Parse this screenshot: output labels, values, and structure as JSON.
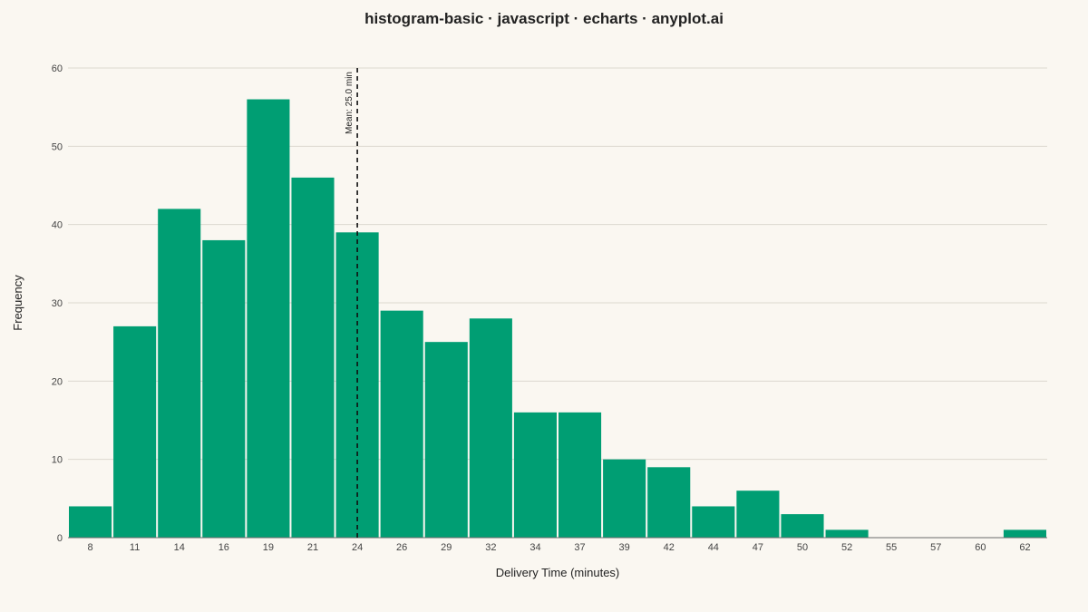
{
  "chart_data": {
    "type": "bar",
    "title": "histogram-basic · javascript · echarts · anyplot.ai",
    "xlabel": "Delivery Time (minutes)",
    "ylabel": "Frequency",
    "categories": [
      "8",
      "11",
      "14",
      "16",
      "19",
      "21",
      "24",
      "26",
      "29",
      "32",
      "34",
      "37",
      "39",
      "42",
      "44",
      "47",
      "50",
      "52",
      "55",
      "57",
      "60",
      "62"
    ],
    "values": [
      4,
      27,
      42,
      38,
      56,
      46,
      39,
      29,
      25,
      28,
      16,
      16,
      10,
      9,
      4,
      6,
      3,
      1,
      0,
      0,
      0,
      1
    ],
    "ylim": [
      0,
      60
    ],
    "yticks": [
      "0",
      "10",
      "20",
      "30",
      "40",
      "50",
      "60"
    ],
    "grid": true,
    "bar_color": "#009E73",
    "mean_line": {
      "label": "Mean: 25.0 min",
      "position_category_index": 6.5,
      "style": "dashed"
    }
  }
}
